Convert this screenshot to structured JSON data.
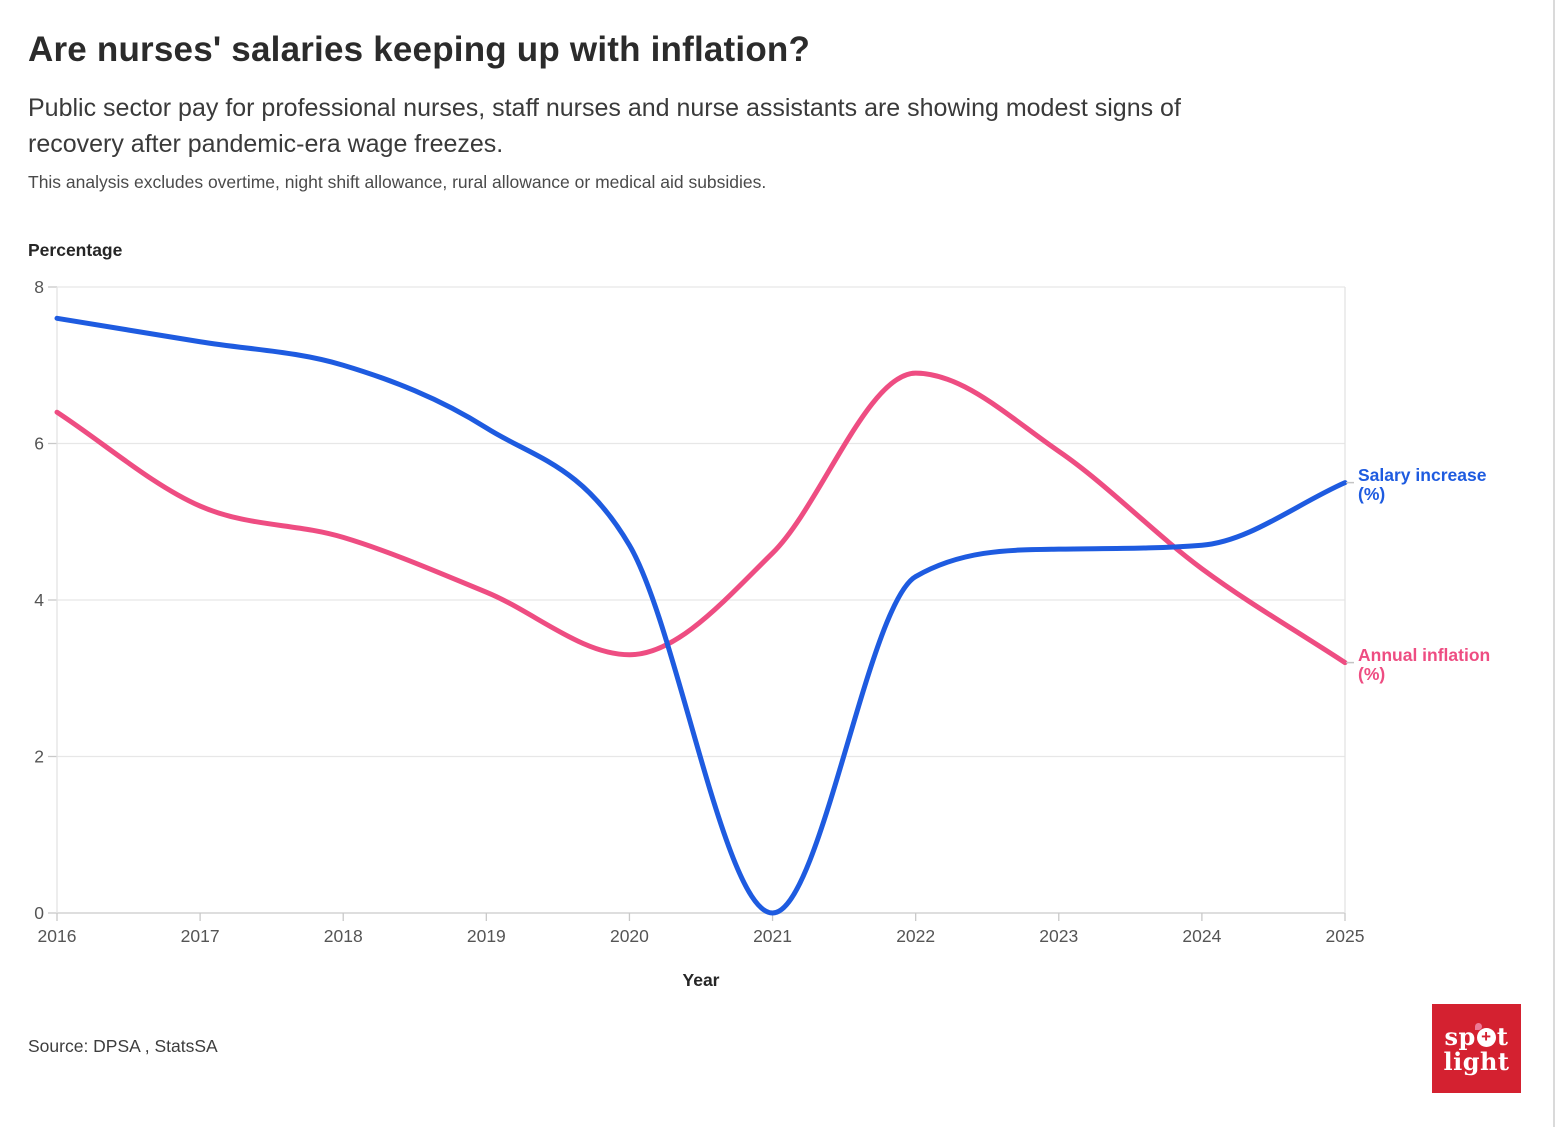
{
  "header": {
    "title": "Are nurses' salaries keeping up with inflation?",
    "subtitle_lines": [
      "Public sector pay for professional nurses, staff nurses and nurse assistants are showing modest signs of",
      "recovery after pandemic-era wage freezes."
    ],
    "note": "This analysis excludes overtime, night shift allowance, rural allowance or medical aid subsidies."
  },
  "chart": {
    "y_axis_title": "Percentage",
    "x_axis_title": "Year",
    "series_labels": {
      "salary": [
        "Salary increase",
        "(%)"
      ],
      "inflation": [
        "Annual inflation",
        "(%)"
      ]
    },
    "colors": {
      "salary": "#1e5be0",
      "inflation": "#ee4d82",
      "gridline": "#e7e7e7",
      "axis_line": "#c9c9c9",
      "axis_side": "#e3e3e3",
      "tick": "#c9c9c9",
      "tick_label": "#555555",
      "connector": "#c4c4c4"
    }
  },
  "chart_data": {
    "type": "line",
    "x": [
      2016,
      2017,
      2018,
      2019,
      2020,
      2021,
      2022,
      2023,
      2024,
      2025
    ],
    "series": [
      {
        "name": "Salary increase (%)",
        "color": "#1e5be0",
        "values": [
          7.6,
          7.3,
          7.0,
          6.2,
          4.7,
          0.0,
          4.3,
          4.65,
          4.7,
          5.5
        ]
      },
      {
        "name": "Annual inflation (%)",
        "color": "#ee4d82",
        "values": [
          6.4,
          5.2,
          4.8,
          4.1,
          3.3,
          4.6,
          6.9,
          5.9,
          4.4,
          3.2
        ]
      }
    ],
    "title": "Are nurses' salaries keeping up with inflation?",
    "xlabel": "Year",
    "ylabel": "Percentage",
    "ylim": [
      0,
      8
    ],
    "yticks": [
      0,
      2,
      4,
      6,
      8
    ],
    "grid": true,
    "curve": "monotone",
    "legend_position": "right-of-line-ends"
  },
  "footer": {
    "source": "Source: DPSA , StatsSA",
    "logo": {
      "part1": "sp",
      "cross_glyph": "+",
      "part2": "t",
      "line2": "light"
    }
  }
}
